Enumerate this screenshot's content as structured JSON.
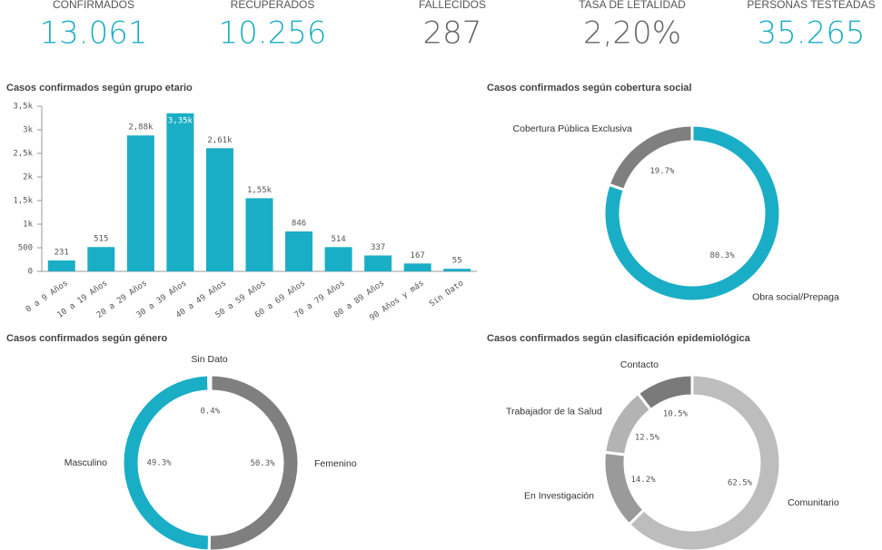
{
  "kpis": [
    {
      "label": "CONFIRMADOS",
      "value": "13.061",
      "color": "#1aaec6"
    },
    {
      "label": "RECUPERADOS",
      "value": "10.256",
      "color": "#1aaec6"
    },
    {
      "label": "FALLECIDOS",
      "value": "287",
      "color": "#666666"
    },
    {
      "label": "TASA DE LETALIDAD",
      "value": "2,20%",
      "color": "#666666"
    },
    {
      "label": "PERSONAS TESTEADAS",
      "value": "35.265",
      "color": "#1aaec6"
    }
  ],
  "chart_data": [
    {
      "type": "bar",
      "title": "Casos confirmados según grupo etario",
      "categories": [
        "0 a 9 Años",
        "10 a 19 Años",
        "20 a 29 Años",
        "30 a 39 Años",
        "40 a 49 Años",
        "50 a 59 Años",
        "60 a 69 Años",
        "70 a 79 Años",
        "80 a 89 Años",
        "90 Años y más",
        "Sin Dato"
      ],
      "values": [
        231,
        515,
        2880,
        3350,
        2610,
        1550,
        846,
        514,
        337,
        167,
        55
      ],
      "value_labels": [
        "231",
        "515",
        "2,88k",
        "3,35k",
        "2,61k",
        "1,55k",
        "846",
        "514",
        "337",
        "167",
        "55"
      ],
      "color": "#1aaec6",
      "ylim": [
        0,
        3500
      ],
      "yticks": [
        0,
        500,
        {
          "value": 1000,
          "label": "1k"
        },
        {
          "value": 1500,
          "label": "1,5k"
        },
        {
          "value": 2000,
          "label": "2k"
        },
        {
          "value": 2500,
          "label": "2,5k"
        },
        {
          "value": 3000,
          "label": "3k"
        },
        {
          "value": 3500,
          "label": "3,5k"
        }
      ]
    },
    {
      "type": "donut",
      "title": "Casos confirmados según cobertura social",
      "categories": [
        "Obra social/Prepaga",
        "Cobertura Pública Exclusiva"
      ],
      "values": [
        80.3,
        19.7
      ],
      "value_labels": [
        "80.3%",
        "19.7%"
      ],
      "colors": [
        "#1aaec6",
        "#7f7f7f"
      ]
    },
    {
      "type": "donut",
      "title": "Casos confirmados según género",
      "categories": [
        "Femenino",
        "Masculino",
        "Sin Dato"
      ],
      "values": [
        50.3,
        49.3,
        0.4
      ],
      "value_labels": [
        "50.3%",
        "49.3%",
        "0.4%"
      ],
      "colors": [
        "#7f7f7f",
        "#1aaec6",
        "#cccccc"
      ]
    },
    {
      "type": "donut",
      "title": "Casos confirmados según clasificación epidemiológica",
      "categories": [
        "Comunitario",
        "En Investigación",
        "Trabajador de la Salud",
        "Contacto"
      ],
      "values": [
        62.5,
        14.2,
        12.5,
        10.5
      ],
      "value_labels": [
        "62.5%",
        "14.2%",
        "12.5%",
        "10.5%"
      ],
      "colors": [
        "#bdbdbd",
        "#9a9a9a",
        "#b3b3b3",
        "#7a7a7a"
      ]
    }
  ]
}
